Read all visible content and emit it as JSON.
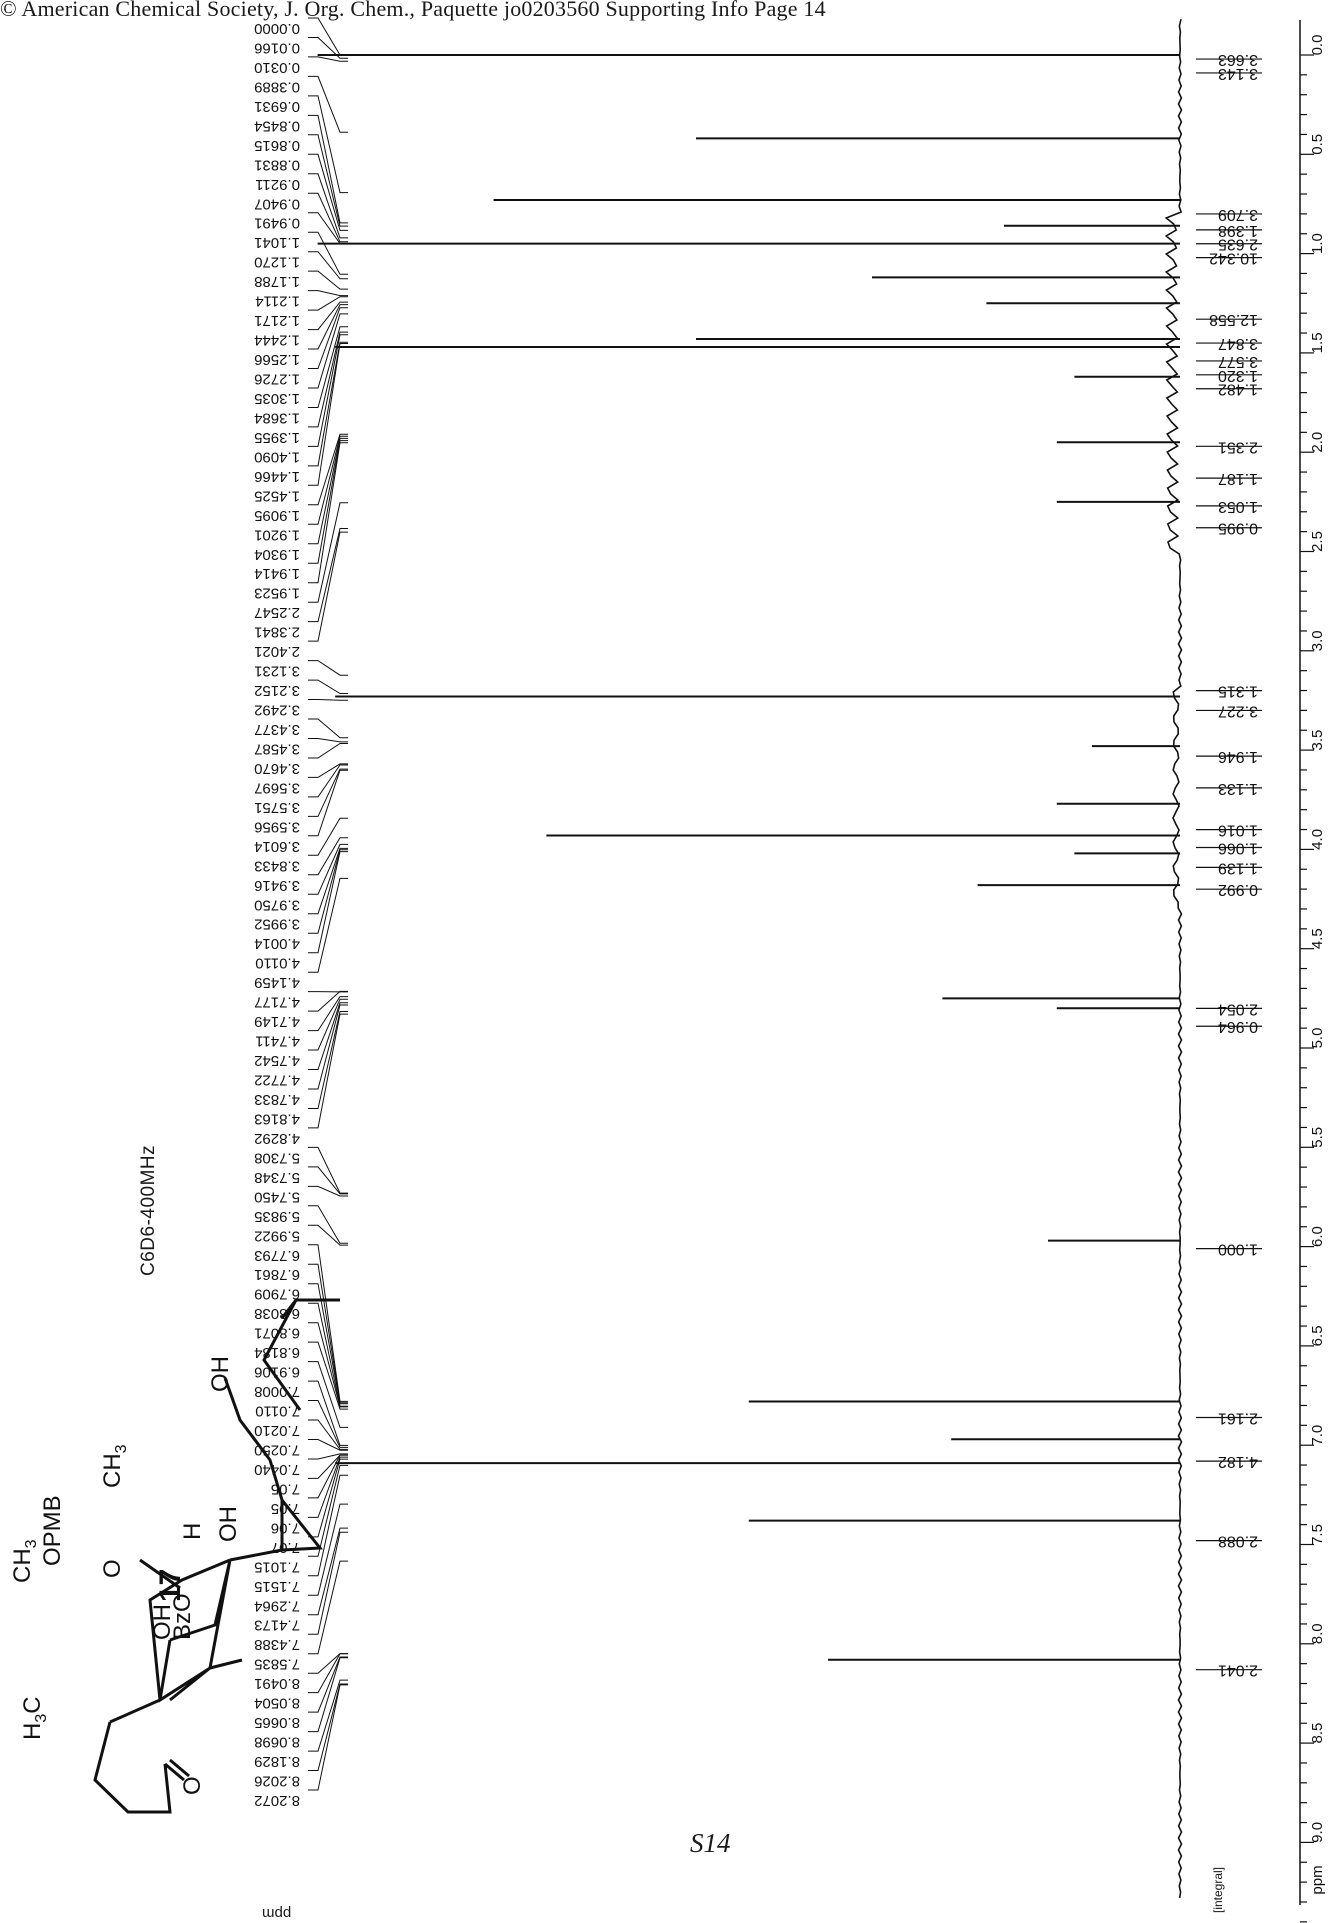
{
  "header": {
    "text": "© American Chemical Society, J. Org. Chem., Paquette jo0203560 Supporting Info Page 14"
  },
  "page_number": "S14",
  "instrument": "C6D6-400MHz",
  "compound_number": "17",
  "structure_labels": {
    "opmb": "OPMB",
    "o_ketone_top": "O",
    "ch3_top": "CH",
    "ch3_top_sub": "3",
    "oh_right": "OH",
    "oh_chain": "OH",
    "h_bridge": "H",
    "oh_mid": "OH",
    "bzo": "BzO",
    "ch3_left": "CH",
    "ch3_left_sub": "3",
    "h3c": "H",
    "h3c_sub": "3",
    "h3c_c": "C",
    "o_ketone_bottom": "O"
  },
  "axis": {
    "unit": "ppm",
    "integral_label": "[integral]",
    "ppm_bottom_mark": "ppm"
  },
  "chart_data": {
    "type": "line",
    "orientation": "rotated-90",
    "xlabel": "ppm",
    "xlim": [
      -0.1,
      9.5
    ],
    "ticks": [
      "0.0",
      "0.5",
      "1.0",
      "1.5",
      "2.0",
      "2.5",
      "3.0",
      "3.5",
      "4.0",
      "4.5",
      "5.0",
      "5.5",
      "6.0",
      "6.5",
      "7.0",
      "7.5",
      "8.0",
      "8.5",
      "9.0",
      "ppm"
    ],
    "peaks": [
      {
        "ppm": 0.0,
        "height": 0.98
      },
      {
        "ppm": 0.42,
        "height": 0.55
      },
      {
        "ppm": 0.73,
        "height": 0.78
      },
      {
        "ppm": 0.86,
        "height": 0.2
      },
      {
        "ppm": 0.95,
        "height": 0.98
      },
      {
        "ppm": 1.12,
        "height": 0.35
      },
      {
        "ppm": 1.25,
        "height": 0.22
      },
      {
        "ppm": 1.43,
        "height": 0.55
      },
      {
        "ppm": 1.47,
        "height": 0.96
      },
      {
        "ppm": 1.62,
        "height": 0.12
      },
      {
        "ppm": 1.95,
        "height": 0.14
      },
      {
        "ppm": 2.25,
        "height": 0.14
      },
      {
        "ppm": 3.23,
        "height": 0.96
      },
      {
        "ppm": 3.48,
        "height": 0.1
      },
      {
        "ppm": 3.77,
        "height": 0.14
      },
      {
        "ppm": 3.93,
        "height": 0.72
      },
      {
        "ppm": 4.02,
        "height": 0.12
      },
      {
        "ppm": 4.18,
        "height": 0.23
      },
      {
        "ppm": 4.75,
        "height": 0.27
      },
      {
        "ppm": 4.8,
        "height": 0.14
      },
      {
        "ppm": 5.97,
        "height": 0.15
      },
      {
        "ppm": 6.78,
        "height": 0.49
      },
      {
        "ppm": 6.97,
        "height": 0.26
      },
      {
        "ppm": 7.09,
        "height": 0.96
      },
      {
        "ppm": 7.38,
        "height": 0.49
      },
      {
        "ppm": 8.08,
        "height": 0.4
      }
    ],
    "peak_list": [
      "0.0000",
      "0.0166",
      "0.0310",
      "0.3889",
      "0.6931",
      "0.8454",
      "0.8615",
      "0.8831",
      "0.9211",
      "0.9407",
      "0.9491",
      "1.1041",
      "1.1270",
      "1.1788",
      "1.2114",
      "1.2171",
      "1.2444",
      "1.2566",
      "1.2726",
      "1.3035",
      "1.3684",
      "1.3955",
      "1.4090",
      "1.4466",
      "1.4525",
      "1.9095",
      "1.9201",
      "1.9304",
      "1.9414",
      "1.9523",
      "2.2547",
      "2.3841",
      "2.4021",
      "3.1231",
      "3.2152",
      "3.2492",
      "3.4377",
      "3.4587",
      "3.4670",
      "3.5697",
      "3.5751",
      "3.5956",
      "3.6014",
      "3.8433",
      "3.9416",
      "3.9750",
      "3.9952",
      "4.0014",
      "4.0110",
      "4.1459",
      "4.7177",
      "4.7149",
      "4.7411",
      "4.7542",
      "4.7722",
      "4.7833",
      "4.8163",
      "4.8292",
      "5.7308",
      "5.7348",
      "5.7450",
      "5.9835",
      "5.9922",
      "6.7793",
      "6.7861",
      "6.7909",
      "6.8038",
      "6.8071",
      "6.8184",
      "6.9106",
      "7.0008",
      "7.0110",
      "7.0210",
      "7.0250",
      "7.0440",
      "7.05",
      "7.05",
      "7.06",
      "7.07",
      "7.1015",
      "7.1515",
      "7.2964",
      "7.4173",
      "7.4388",
      "7.5835",
      "8.0491",
      "8.0504",
      "8.0665",
      "8.0698",
      "8.1829",
      "8.2026",
      "8.2072"
    ],
    "integrals": [
      {
        "label": "3.663",
        "ppm": -0.03
      },
      {
        "label": "3.143",
        "ppm": 0.04
      },
      {
        "label": "3.709",
        "ppm": 0.75
      },
      {
        "label": "1.398",
        "ppm": 0.83
      },
      {
        "label": "2.635",
        "ppm": 0.9
      },
      {
        "label": "10.342",
        "ppm": 0.97
      },
      {
        "label": "12.558",
        "ppm": 1.28
      },
      {
        "label": "3.847",
        "ppm": 1.4
      },
      {
        "label": "3.577",
        "ppm": 1.49
      },
      {
        "label": "1.320",
        "ppm": 1.56
      },
      {
        "label": "1.482",
        "ppm": 1.63
      },
      {
        "label": "2.351",
        "ppm": 1.92
      },
      {
        "label": "1.187",
        "ppm": 2.08
      },
      {
        "label": "1.053",
        "ppm": 2.22
      },
      {
        "label": "0.995",
        "ppm": 2.33
      },
      {
        "label": "1.315",
        "ppm": 3.15
      },
      {
        "label": "3.227",
        "ppm": 3.25
      },
      {
        "label": "1.946",
        "ppm": 3.48
      },
      {
        "label": "1.133",
        "ppm": 3.64
      },
      {
        "label": "1.016",
        "ppm": 3.85
      },
      {
        "label": "1.066",
        "ppm": 3.94
      },
      {
        "label": "1.139",
        "ppm": 4.04
      },
      {
        "label": "0.992",
        "ppm": 4.15
      },
      {
        "label": "2.054",
        "ppm": 4.75
      },
      {
        "label": "0.964",
        "ppm": 4.84
      },
      {
        "label": "1.000",
        "ppm": 5.96
      },
      {
        "label": "2.161",
        "ppm": 6.81
      },
      {
        "label": "4.182",
        "ppm": 7.03
      },
      {
        "label": "2.088",
        "ppm": 7.43
      },
      {
        "label": "2.041",
        "ppm": 8.08
      }
    ]
  }
}
